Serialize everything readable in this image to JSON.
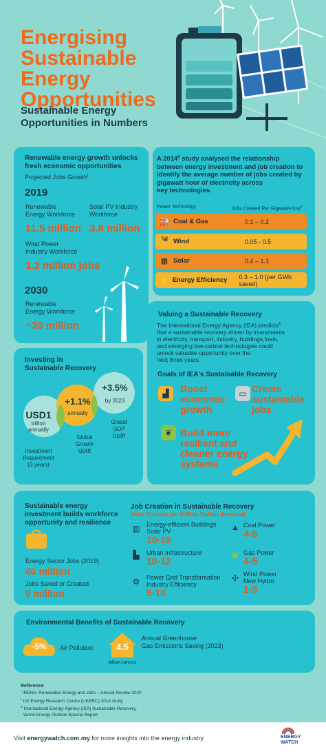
{
  "header": {
    "title_lines": [
      "Energising",
      "Sustainable",
      "Energy",
      "Opportunities"
    ],
    "subtitle_lines": [
      "Sustainable Energy",
      "Opportunities in Numbers"
    ]
  },
  "growth": {
    "heading_lines": [
      "Renewable energy growth unlocks",
      "fresh economic opportunities"
    ],
    "projected_label": "Projected Jobs Growth",
    "projected_sup": "i",
    "year_2019": "2019",
    "re_workforce_lines": [
      "Renewable",
      "Energy Workforce"
    ],
    "re_workforce_value": "11.5 million",
    "solar_lines": [
      "Solar PV Industry",
      "Workforce"
    ],
    "solar_value": "3.8 million",
    "wind_lines": [
      "Wind Power",
      "Industry Workforce"
    ],
    "wind_value": "1.2 million jobs",
    "year_2030": "2030",
    "re_2030_lines": [
      "Renewable",
      "Energy Workforce"
    ],
    "re_2030_value": "~30 million"
  },
  "study": {
    "intro_pre": "A 2014",
    "intro_sup": "ii",
    "intro_lines": [
      " study analysed the relationship",
      "between energy investment and job creation to",
      "identify the average number of jobs created by",
      "gigawatt hour of electricity across",
      "key technologies."
    ],
    "col1": "Power Technology",
    "col2": "Jobs Created Per Gigawatt-hour",
    "col2_sup": "ii",
    "rows": [
      {
        "icon": "factory-icon",
        "glyph": "🏭",
        "label": "Coal & Gas",
        "value": "0.1 – 0.2",
        "color": "#f08a24"
      },
      {
        "icon": "wind-icon",
        "glyph": "༄",
        "label": "Wind",
        "value": "0.05 - 0.5",
        "color": "#f5b52e"
      },
      {
        "icon": "solar-icon",
        "glyph": "▦",
        "label": "Solar",
        "value": "0.4 – 1.1",
        "color": "#f08a24"
      },
      {
        "icon": "efficiency-icon",
        "glyph": "⚡",
        "label": "Energy Efficiency",
        "value": "0.3 – 1.0 (per GWh saved)",
        "color": "#f5b52e"
      }
    ]
  },
  "investing": {
    "heading_lines": [
      "Investing in",
      "Sustainable Recovery"
    ],
    "usd_value": "USD1",
    "usd_lines": [
      "trillion",
      "annually"
    ],
    "invest_lines": [
      "Investment",
      "Requirement",
      "(3 years)"
    ],
    "growth_value": "+1.1%",
    "growth_sub": "annually",
    "growth_lines": [
      "Global",
      "Growth",
      "Uplift"
    ],
    "gdp_value": "+3.5%",
    "gdp_sub": "by 2023",
    "gdp_lines": [
      "Global",
      "GDP",
      "Uplift"
    ]
  },
  "valuing": {
    "heading": "Valuing a Sustainable Recovery",
    "body_lines": [
      "The International Energy Agency (IEA) predicts",
      "that a sustainable recovery driven by investments",
      "in electricity, transport, industry, buildings,fuels,",
      "and emerging low-carbon technologies could",
      "unlock valuable opportunity over the",
      "next three years."
    ],
    "body_sup": "iii",
    "goals_heading": "Goals of IEA's Sustainable Recovery",
    "goal1_lines": [
      "Boost",
      "economic",
      "growth"
    ],
    "goal2_lines": [
      "Create",
      "sustainable",
      "jobs"
    ],
    "goal3_lines": [
      "Build more",
      "resilient and",
      "cleaner energy",
      "systems"
    ]
  },
  "workforce": {
    "heading_lines": [
      "Sustainable energy",
      "investment builds workforce",
      "opportunity and resilience"
    ],
    "sector_label": "Energy Sector Jobs (2019)",
    "sector_value": "40 million",
    "saved_label": "Jobs Saved or Created",
    "saved_value": "9 million"
  },
  "jobcreation": {
    "heading": "Job Creation in Sustainable Recovery",
    "subheading": "Jobs Created per Million Dollars Invested",
    "left": [
      {
        "icon": "building-icon",
        "glyph": "▥",
        "lines": [
          "Energy-efficient Buildings",
          "Solar PV"
        ],
        "value": "10-15"
      },
      {
        "icon": "city-icon",
        "glyph": "▙",
        "lines": [
          "Urban Infrastructure"
        ],
        "value": "10-12"
      },
      {
        "icon": "grid-icon",
        "glyph": "⚙",
        "lines": [
          "Power Grid Transformation",
          "Industry Efficiency"
        ],
        "value": "5-10"
      }
    ],
    "right": [
      {
        "icon": "coal-icon",
        "glyph": "▲",
        "lines": [
          "Coal Power"
        ],
        "value": "4-6"
      },
      {
        "icon": "gas-icon",
        "glyph": "◼",
        "lines": [
          "Gas Power"
        ],
        "value": "4-5"
      },
      {
        "icon": "wind-power-icon",
        "glyph": "✣",
        "lines": [
          "Wind Power",
          "New Hydro"
        ],
        "value": "1-5"
      }
    ]
  },
  "environment": {
    "heading": "Environmental Benefits of Sustainable Recovery",
    "pollution_value": "-5%",
    "pollution_label": "Air Pollution",
    "ghg_value": "4.5",
    "ghg_unit": "billion tonnes",
    "ghg_lines": [
      "Annual Greenhouse",
      "Gas Emissions Saving (2023)"
    ]
  },
  "references": {
    "heading": "Reference",
    "items": [
      "IRENA, Renewable Energy and Jobs – Annual Review 2020",
      "UK Energy Research Centre (UKERC) 2014 study",
      "International Energy Agency (IEA) Sustainable Recovery,",
      "World Energy Outlook Special Report"
    ],
    "markers": [
      "i",
      "ii",
      "iii"
    ]
  },
  "footer": {
    "pre": "Visit ",
    "link": "energywatch.com.my",
    "post": " for more insights into the energy industry",
    "logo_lines": [
      "ENERGY",
      "WATCH"
    ]
  },
  "colors": {
    "background": "#8fd9d0",
    "panel": "#27c1cf",
    "accent": "#e8591a",
    "yellow": "#f5b52e"
  }
}
